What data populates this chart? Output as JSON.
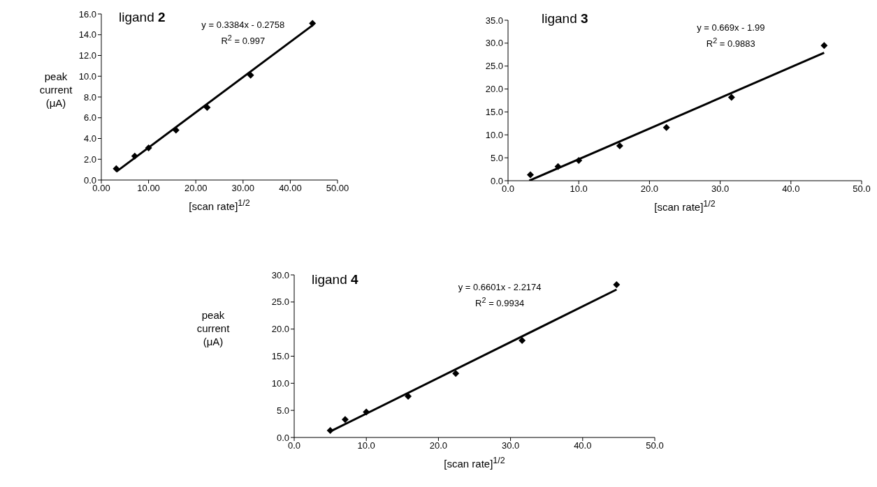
{
  "chart_data": [
    {
      "type": "scatter",
      "title": "ligand 2",
      "xlabel": "[scan rate]$^{1/2}$",
      "ylabel": "peak\ncurrent\n(μA)",
      "annotations": [
        "y = 0.3384x - 0.2758",
        "R$^{2}$ = 0.997"
      ],
      "legend": false,
      "grid": false,
      "xlim": [
        0,
        50
      ],
      "xticks": [
        {
          "value": 0,
          "label": "0.00"
        },
        {
          "value": 10,
          "label": "10.00"
        },
        {
          "value": 20,
          "label": "20.00"
        },
        {
          "value": 30,
          "label": "30.00"
        },
        {
          "value": 40,
          "label": "40.00"
        },
        {
          "value": 50,
          "label": "50.00"
        }
      ],
      "ylim": [
        0,
        16
      ],
      "yticks": [
        {
          "value": 0,
          "label": "0.0"
        },
        {
          "value": 2,
          "label": "2.0"
        },
        {
          "value": 4,
          "label": "4.0"
        },
        {
          "value": 6,
          "label": "6.0"
        },
        {
          "value": 8,
          "label": "8.0"
        },
        {
          "value": 10,
          "label": "10.0"
        },
        {
          "value": 12,
          "label": "12.0"
        },
        {
          "value": 14,
          "label": "14.0"
        },
        {
          "value": 16,
          "label": "16.0"
        }
      ],
      "series": [
        {
          "type": "scatter",
          "marker": "diamond",
          "color": "#000000",
          "x": [
            3.16,
            7.07,
            10,
            15.8,
            22.4,
            31.6,
            44.7
          ],
          "values": [
            1.1,
            2.3,
            3.1,
            4.8,
            7.0,
            10.1,
            15.1
          ]
        },
        {
          "type": "line",
          "color": "#000000",
          "x": [
            3.16,
            44.7
          ],
          "values": [
            0.8,
            14.9
          ]
        }
      ]
    },
    {
      "type": "scatter",
      "title": "ligand 3",
      "xlabel": "[scan rate]$^{1/2}$",
      "annotations": [
        "y = 0.669x - 1.99",
        "R$^{2}$ = 0.9883"
      ],
      "legend": false,
      "grid": false,
      "xlim": [
        0,
        50
      ],
      "xticks": [
        {
          "value": 0,
          "label": "0.0"
        },
        {
          "value": 10,
          "label": "10.0"
        },
        {
          "value": 20,
          "label": "20.0"
        },
        {
          "value": 30,
          "label": "30.0"
        },
        {
          "value": 40,
          "label": "40.0"
        },
        {
          "value": 50,
          "label": "50.0"
        }
      ],
      "ylim": [
        0,
        35
      ],
      "yticks": [
        {
          "value": 0,
          "label": "0.0"
        },
        {
          "value": 5,
          "label": "5.0"
        },
        {
          "value": 10,
          "label": "10.0"
        },
        {
          "value": 15,
          "label": "15.0"
        },
        {
          "value": 20,
          "label": "20.0"
        },
        {
          "value": 25,
          "label": "25.0"
        },
        {
          "value": 30,
          "label": "30.0"
        },
        {
          "value": 35,
          "label": "35.0"
        }
      ],
      "series": [
        {
          "type": "scatter",
          "marker": "diamond",
          "color": "#000000",
          "x": [
            3.16,
            7.07,
            10,
            15.8,
            22.4,
            31.6,
            44.7
          ],
          "values": [
            1.3,
            3.1,
            4.4,
            7.6,
            11.6,
            18.2,
            29.5
          ]
        },
        {
          "type": "line",
          "color": "#000000",
          "x": [
            3.0,
            44.7
          ],
          "values": [
            0,
            27.9
          ]
        }
      ]
    },
    {
      "type": "scatter",
      "title": "ligand 4",
      "xlabel": "[scan rate]$^{1/2}$",
      "ylabel": "peak\ncurrent\n(μA)",
      "annotations": [
        "y = 0.6601x - 2.2174",
        "R$^{2}$ = 0.9934"
      ],
      "legend": false,
      "grid": false,
      "xlim": [
        0,
        50
      ],
      "xticks": [
        {
          "value": 0,
          "label": "0.0"
        },
        {
          "value": 10,
          "label": "10.0"
        },
        {
          "value": 20,
          "label": "20.0"
        },
        {
          "value": 30,
          "label": "30.0"
        },
        {
          "value": 40,
          "label": "40.0"
        },
        {
          "value": 50,
          "label": "50.0"
        }
      ],
      "ylim": [
        0,
        30
      ],
      "yticks": [
        {
          "value": 0,
          "label": "0.0"
        },
        {
          "value": 5,
          "label": "5.0"
        },
        {
          "value": 10,
          "label": "10.0"
        },
        {
          "value": 15,
          "label": "15.0"
        },
        {
          "value": 20,
          "label": "20.0"
        },
        {
          "value": 25,
          "label": "25.0"
        },
        {
          "value": 30,
          "label": "30.0"
        }
      ],
      "series": [
        {
          "type": "scatter",
          "marker": "diamond",
          "color": "#000000",
          "x": [
            5,
            7.07,
            10,
            15.8,
            22.4,
            31.6,
            44.7
          ],
          "values": [
            1.3,
            3.3,
            4.7,
            7.6,
            11.8,
            17.9,
            28.2
          ]
        },
        {
          "type": "line",
          "color": "#000000",
          "x": [
            5,
            44.7
          ],
          "values": [
            1.1,
            27.3
          ]
        }
      ]
    }
  ]
}
